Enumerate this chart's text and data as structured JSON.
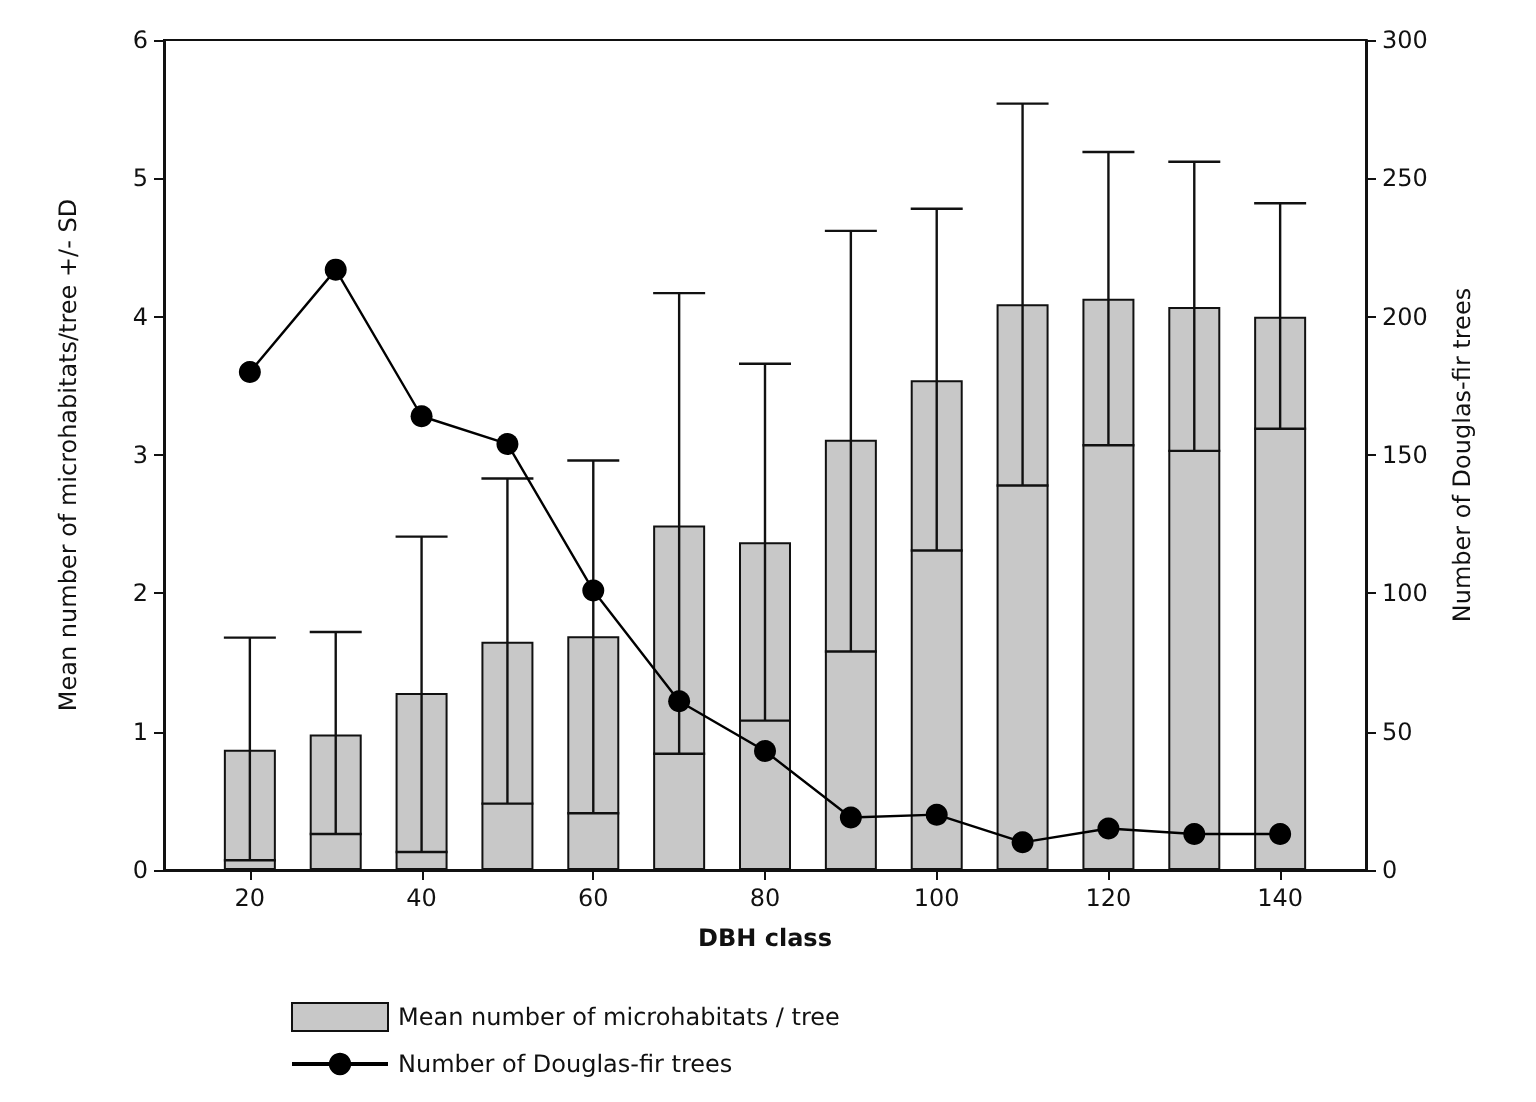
{
  "chart_data": {
    "type": "bar",
    "xlabel": "DBH class",
    "ylabel": "Mean number of microhabitats/tree +/- SD",
    "y2label": "Number of Douglas-fir trees",
    "x": [
      20,
      30,
      40,
      50,
      60,
      70,
      80,
      90,
      100,
      110,
      120,
      130,
      140
    ],
    "series": [
      {
        "name": "Mean number of microhabitats / tree",
        "color": "#c8c8c8",
        "values": [
          0.87,
          0.98,
          1.28,
          1.65,
          1.69,
          2.49,
          2.37,
          3.11,
          3.54,
          4.09,
          4.13,
          4.07,
          4.0
        ],
        "errors": [
          [
            0.07,
            1.68
          ],
          [
            0.26,
            1.72
          ],
          [
            0.13,
            2.41
          ],
          [
            0.48,
            2.83
          ],
          [
            0.41,
            2.96
          ],
          [
            0.84,
            4.17
          ],
          [
            1.08,
            3.66
          ],
          [
            1.58,
            4.62
          ],
          [
            2.31,
            4.78
          ],
          [
            2.78,
            5.54
          ],
          [
            3.07,
            5.19
          ],
          [
            3.03,
            5.12
          ],
          [
            3.19,
            4.82
          ]
        ]
      },
      {
        "name": "Number of Douglas-fir trees",
        "type": "line",
        "axis": "y2",
        "color": "#000000",
        "marker": "circle",
        "values": [
          180,
          217,
          164,
          154,
          101,
          61,
          43,
          19,
          20,
          10,
          15,
          13,
          13
        ]
      }
    ],
    "xlim": [
      10,
      150
    ],
    "xticks": [
      20,
      40,
      60,
      80,
      100,
      120,
      140
    ],
    "ylim": [
      0,
      6
    ],
    "yticks": [
      0,
      1,
      2,
      3,
      4,
      5,
      6
    ],
    "y2lim": [
      0,
      300
    ],
    "y2ticks": [
      0,
      50,
      100,
      150,
      200,
      250,
      300
    ],
    "grid": false,
    "legend": "bottom"
  }
}
